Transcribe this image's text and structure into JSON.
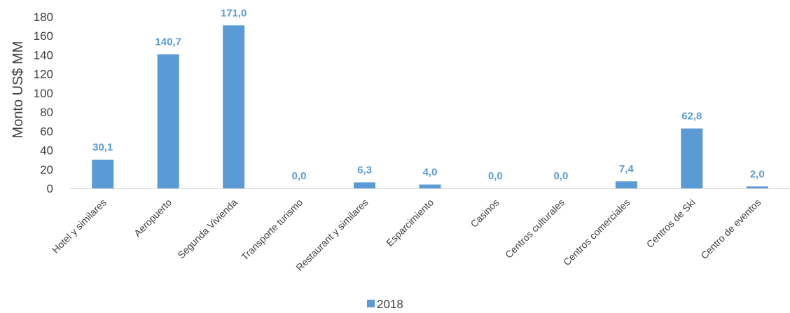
{
  "chart_data": {
    "type": "bar",
    "categories": [
      "Hotel y similares",
      "Aeropuerto",
      "Segunda Vivienda",
      "Transporte turismo",
      "Restaurant y similares",
      "Esparcimiento",
      "Casinos",
      "Centros culturales",
      "Centros comerciales",
      "Centros de Ski",
      "Centro de eventos"
    ],
    "series": [
      {
        "name": "2018",
        "values": [
          30.1,
          140.7,
          171.0,
          0.0,
          6.3,
          4.0,
          0.0,
          0.0,
          7.4,
          62.8,
          2.0
        ],
        "data_labels": [
          "30,1",
          "140,7",
          "171,0",
          "0,0",
          "6,3",
          "4,0",
          "0,0",
          "0,0",
          "7,4",
          "62,8",
          "2,0"
        ]
      }
    ],
    "title": "",
    "xlabel": "",
    "ylabel": "Monto US$ MM",
    "ylim": [
      0,
      180
    ],
    "yticks": [
      0,
      20,
      40,
      60,
      80,
      100,
      120,
      140,
      160,
      180
    ],
    "grid": false,
    "legend": "bottom",
    "colors": {
      "bar": "#5b9bd5",
      "label": "#5b9bd5",
      "axis": "#d9d9d9"
    }
  }
}
